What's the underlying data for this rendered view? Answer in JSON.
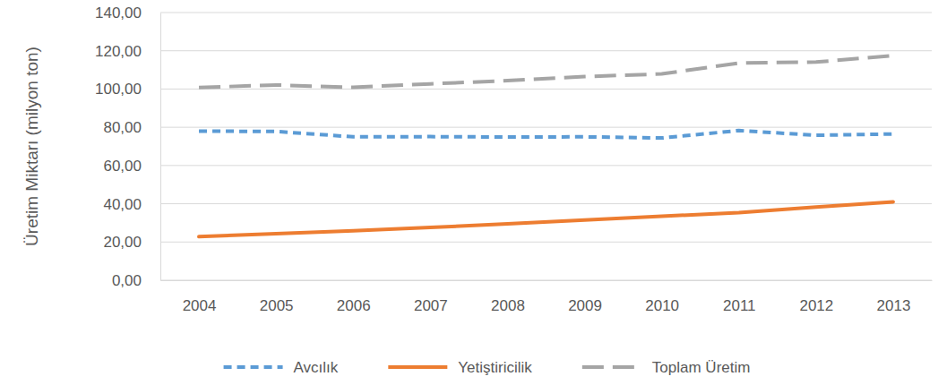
{
  "chart_data": {
    "type": "line",
    "y_label": "Üretim Miktarı (milyon ton)",
    "categories": [
      "2004",
      "2005",
      "2006",
      "2007",
      "2008",
      "2009",
      "2010",
      "2011",
      "2012",
      "2013"
    ],
    "series": [
      {
        "name": "Avcılık",
        "color": "#5b9bd5",
        "line_style": "dashed",
        "values": [
          78.0,
          77.8,
          75.0,
          75.1,
          74.9,
          75.0,
          74.4,
          78.3,
          75.8,
          76.5
        ]
      },
      {
        "name": "Yetiştiricilik",
        "color": "#ed7d31",
        "line_style": "solid",
        "values": [
          22.8,
          24.3,
          25.9,
          27.6,
          29.5,
          31.5,
          33.5,
          35.3,
          38.3,
          41.0
        ]
      },
      {
        "name": "Toplam Üretim",
        "color": "#a5a5a5",
        "line_style": "long_dash",
        "values": [
          100.8,
          102.1,
          100.9,
          102.7,
          104.4,
          106.5,
          107.9,
          113.6,
          114.1,
          117.5
        ]
      }
    ],
    "ylim": [
      0,
      140
    ],
    "yticks": [
      {
        "value": 0,
        "label": "0,00"
      },
      {
        "value": 20,
        "label": "20,00"
      },
      {
        "value": 40,
        "label": "40,00"
      },
      {
        "value": 60,
        "label": "60,00"
      },
      {
        "value": 80,
        "label": "80,00"
      },
      {
        "value": 100,
        "label": "100,00"
      },
      {
        "value": 120,
        "label": "120,00"
      },
      {
        "value": 140,
        "label": "140,00"
      }
    ],
    "grid": true,
    "legend": "bottom"
  }
}
